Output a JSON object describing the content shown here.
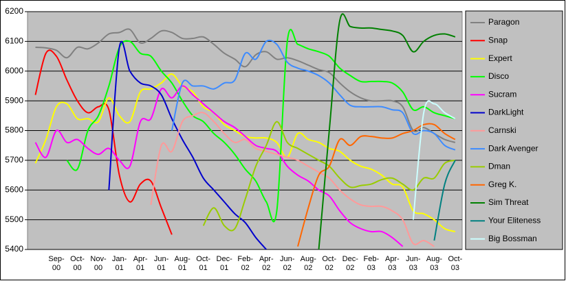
{
  "chart_data": {
    "type": "line",
    "categories": [
      null,
      null,
      "Sep-00",
      null,
      "Oct-00",
      null,
      "Nov-00",
      null,
      "Jan-01",
      null,
      "Apr-01",
      null,
      "Jun-01",
      null,
      "Aug-01",
      null,
      "Oct-01",
      null,
      "Dec-01",
      null,
      "Feb-02",
      null,
      "Apr-02",
      null,
      "Jun-02",
      null,
      "Aug-02",
      null,
      "Oct-02",
      null,
      "Dec-02",
      null,
      "Feb-03",
      null,
      "Apr-03",
      null,
      "Jun-03",
      null,
      "Aug-03",
      null,
      "Oct-03"
    ],
    "ylim": [
      5400,
      6200
    ],
    "yticks": [
      5400,
      5500,
      5600,
      5700,
      5800,
      5900,
      6000,
      6100,
      6200
    ],
    "grid": true,
    "series": [
      {
        "name": "Paragon",
        "color": "#808080",
        "values": [
          6080,
          6078,
          6070,
          6045,
          6080,
          6075,
          6095,
          6125,
          6130,
          6140,
          6095,
          6110,
          6135,
          6130,
          6110,
          6110,
          6115,
          6090,
          6060,
          6040,
          6015,
          6055,
          6065,
          6040,
          6045,
          6035,
          6020,
          6005,
          5995,
          5960,
          5930,
          5910,
          5900,
          5900,
          5900,
          5880,
          5800,
          5810,
          5790,
          5770,
          5760
        ]
      },
      {
        "name": "Snap",
        "color": "#ff0000",
        "values": [
          5920,
          6060,
          6050,
          5970,
          5900,
          5860,
          5880,
          5870,
          5650,
          5560,
          5620,
          5630,
          5540,
          5450,
          null,
          null,
          null,
          null,
          null,
          null,
          null,
          null,
          null,
          null,
          null,
          null,
          null,
          null,
          null,
          null,
          null,
          null,
          null,
          null,
          null,
          null,
          null,
          null,
          null,
          null,
          null
        ]
      },
      {
        "name": "Expert",
        "color": "#ffff00",
        "values": [
          5690,
          5770,
          5880,
          5890,
          5840,
          5840,
          5830,
          5910,
          5850,
          5830,
          5930,
          5940,
          5960,
          5990,
          5950,
          5930,
          5880,
          5860,
          5820,
          5800,
          5780,
          5775,
          5775,
          5760,
          5710,
          5790,
          5770,
          5760,
          5740,
          5730,
          5700,
          5680,
          5670,
          5650,
          5620,
          5610,
          5530,
          5520,
          5500,
          5470,
          5460
        ]
      },
      {
        "name": "Disco",
        "color": "#00ff00",
        "values": [
          null,
          null,
          null,
          5700,
          5670,
          5800,
          5850,
          5950,
          6080,
          6100,
          6060,
          6050,
          6000,
          5960,
          5900,
          5850,
          5830,
          5790,
          5760,
          5720,
          5670,
          5630,
          5560,
          5530,
          6100,
          6090,
          6075,
          6065,
          6050,
          6010,
          5985,
          5965,
          5965,
          5965,
          5960,
          5930,
          5870,
          5880,
          5860,
          5850,
          5840
        ]
      },
      {
        "name": "Sucram",
        "color": "#ff00ff",
        "values": [
          5760,
          5710,
          5800,
          5760,
          5770,
          5740,
          5720,
          5740,
          5700,
          5680,
          5830,
          5840,
          5940,
          5910,
          5950,
          5920,
          5890,
          5860,
          5830,
          5810,
          5780,
          5750,
          5740,
          5730,
          5680,
          5650,
          5630,
          5600,
          5580,
          5530,
          5490,
          5470,
          5460,
          5460,
          5440,
          5410,
          null,
          null,
          null,
          null,
          null
        ]
      },
      {
        "name": "DarkLight",
        "color": "#0000cc",
        "values": [
          null,
          null,
          null,
          null,
          null,
          null,
          null,
          5600,
          6080,
          6000,
          5960,
          5950,
          5920,
          5840,
          5770,
          5710,
          5640,
          5600,
          5560,
          5520,
          5490,
          5440,
          5400,
          null,
          null,
          null,
          null,
          null,
          null,
          null,
          null,
          null,
          null,
          null,
          null,
          null,
          null,
          null,
          null,
          null,
          null
        ]
      },
      {
        "name": "Carnski",
        "color": "#ff9999",
        "values": [
          null,
          null,
          null,
          null,
          null,
          null,
          null,
          null,
          null,
          null,
          null,
          5550,
          5750,
          5730,
          5830,
          5850,
          5860,
          5830,
          5790,
          5760,
          5770,
          5740,
          5730,
          5720,
          5710,
          5700,
          5680,
          5660,
          5640,
          5600,
          5570,
          5550,
          5545,
          5545,
          5530,
          5500,
          5420,
          5430,
          5410,
          null,
          null
        ]
      },
      {
        "name": "Dark Avenger",
        "color": "#3d8bff",
        "values": [
          null,
          null,
          null,
          null,
          null,
          null,
          null,
          null,
          null,
          null,
          null,
          null,
          null,
          5800,
          5960,
          5950,
          5950,
          5940,
          5960,
          5970,
          6060,
          6040,
          6100,
          6090,
          6030,
          6010,
          6000,
          5985,
          5960,
          5920,
          5885,
          5880,
          5880,
          5880,
          5870,
          5860,
          5790,
          5800,
          5790,
          5750,
          5735
        ]
      },
      {
        "name": "Dman",
        "color": "#99cc00",
        "values": [
          null,
          null,
          null,
          null,
          null,
          null,
          null,
          null,
          null,
          null,
          null,
          null,
          null,
          null,
          null,
          null,
          5480,
          5540,
          5480,
          5470,
          5570,
          5680,
          5750,
          5830,
          5760,
          5740,
          5720,
          5700,
          5680,
          5640,
          5610,
          5615,
          5620,
          5635,
          5640,
          5620,
          5600,
          5640,
          5640,
          5690,
          5700
        ]
      },
      {
        "name": "Greg K.",
        "color": "#ff6600",
        "values": [
          null,
          null,
          null,
          null,
          null,
          null,
          null,
          null,
          null,
          null,
          null,
          null,
          null,
          null,
          null,
          null,
          null,
          null,
          null,
          null,
          null,
          null,
          null,
          null,
          null,
          5410,
          5540,
          5650,
          5680,
          5770,
          5750,
          5780,
          5780,
          5775,
          5775,
          5790,
          5800,
          5820,
          5820,
          5790,
          5770
        ]
      },
      {
        "name": "Sim Threat",
        "color": "#008000",
        "values": [
          null,
          null,
          null,
          null,
          null,
          null,
          null,
          null,
          null,
          null,
          null,
          null,
          null,
          null,
          null,
          null,
          null,
          null,
          null,
          null,
          null,
          null,
          null,
          null,
          null,
          null,
          null,
          5400,
          5800,
          6170,
          6150,
          6145,
          6145,
          6140,
          6135,
          6120,
          6065,
          6100,
          6120,
          6125,
          6115
        ]
      },
      {
        "name": "Your Eliteness",
        "color": "#008080",
        "values": [
          null,
          null,
          null,
          null,
          null,
          null,
          null,
          null,
          null,
          null,
          null,
          null,
          null,
          null,
          null,
          null,
          null,
          null,
          null,
          null,
          null,
          null,
          null,
          null,
          null,
          null,
          null,
          null,
          null,
          null,
          null,
          null,
          null,
          null,
          null,
          null,
          null,
          null,
          5430,
          5620,
          5700
        ]
      },
      {
        "name": "Big Bossman",
        "color": "#ccffff",
        "values": [
          null,
          null,
          null,
          null,
          null,
          null,
          null,
          null,
          null,
          null,
          null,
          null,
          null,
          null,
          null,
          null,
          null,
          null,
          null,
          null,
          null,
          null,
          null,
          null,
          null,
          null,
          null,
          null,
          null,
          null,
          null,
          null,
          null,
          null,
          null,
          null,
          5500,
          5860,
          5890,
          5860,
          5840
        ]
      }
    ]
  }
}
